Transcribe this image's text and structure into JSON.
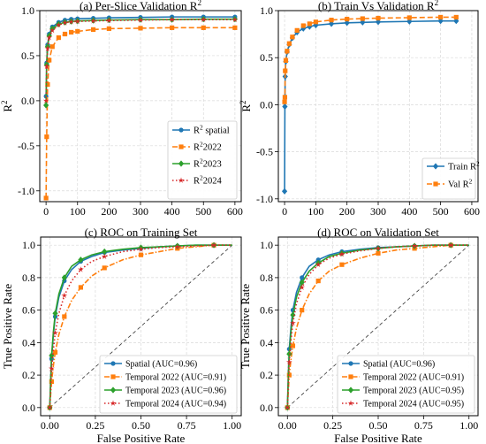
{
  "chart_data": [
    {
      "type": "line",
      "title": "(a) Per-Slice Validation R",
      "title_sup": "2",
      "xlabel": "",
      "ylabel": "R",
      "ylabel_sup": "2",
      "xlim": [
        -20,
        620
      ],
      "ylim": [
        -1.12,
        1.0
      ],
      "xticks": [
        "0",
        "100",
        "200",
        "300",
        "400",
        "500",
        "600"
      ],
      "yticks": [
        "-1.0",
        "-0.5",
        "0.0",
        "0.5",
        "1.0"
      ],
      "grid": true,
      "legend_position": "lower-right",
      "series": [
        {
          "name": "R",
          "name_sup": "2",
          "name_suffix": " spatial",
          "color": "#1f77b4",
          "style": "solid",
          "marker": "circle",
          "x": [
            0,
            2,
            5,
            10,
            20,
            40,
            60,
            80,
            100,
            150,
            200,
            300,
            400,
            500,
            600
          ],
          "y": [
            0.05,
            0.42,
            0.62,
            0.74,
            0.82,
            0.87,
            0.895,
            0.905,
            0.91,
            0.915,
            0.92,
            0.925,
            0.93,
            0.93,
            0.93
          ]
        },
        {
          "name": "R",
          "name_sup": "2",
          "name_suffix": "2022",
          "color": "#ff7f0e",
          "style": "dashed",
          "marker": "square",
          "x": [
            0,
            2,
            5,
            10,
            20,
            40,
            60,
            80,
            100,
            150,
            200,
            300,
            400,
            500,
            600
          ],
          "y": [
            -1.08,
            -0.4,
            0.18,
            0.45,
            0.6,
            0.7,
            0.74,
            0.76,
            0.77,
            0.79,
            0.8,
            0.805,
            0.81,
            0.81,
            0.81
          ]
        },
        {
          "name": "R",
          "name_sup": "2",
          "name_suffix": "2023",
          "color": "#2ca02c",
          "style": "solid",
          "marker": "diamond",
          "x": [
            0,
            2,
            5,
            10,
            20,
            40,
            60,
            80,
            100,
            150,
            200,
            300,
            400,
            500,
            600
          ],
          "y": [
            -0.05,
            0.4,
            0.6,
            0.72,
            0.8,
            0.85,
            0.87,
            0.88,
            0.885,
            0.89,
            0.895,
            0.9,
            0.9,
            0.905,
            0.905
          ]
        },
        {
          "name": "R",
          "name_sup": "2",
          "name_suffix": "2024",
          "color": "#d62728",
          "style": "dotted",
          "marker": "star",
          "x": [
            0,
            2,
            5,
            10,
            20,
            40,
            60,
            80,
            100,
            150,
            200,
            300,
            400,
            500,
            600
          ],
          "y": [
            0.0,
            0.38,
            0.58,
            0.7,
            0.78,
            0.84,
            0.865,
            0.875,
            0.88,
            0.885,
            0.89,
            0.895,
            0.9,
            0.9,
            0.9
          ]
        }
      ]
    },
    {
      "type": "line",
      "title": "(b) Train Vs Validation R",
      "title_sup": "2",
      "xlabel": "",
      "ylabel": "R",
      "ylabel_sup": "2",
      "xlim": [
        -20,
        620
      ],
      "ylim": [
        -1.03,
        1.0
      ],
      "xticks": [
        "0",
        "100",
        "200",
        "300",
        "400",
        "500",
        "600"
      ],
      "yticks": [
        "-1.0",
        "-0.5",
        "0.0",
        "0.5",
        "1.0"
      ],
      "grid": true,
      "legend_position": "lower-right",
      "series": [
        {
          "name": "Train R",
          "name_sup": "2",
          "name_suffix": "",
          "color": "#1f77b4",
          "style": "solid",
          "marker": "diamond",
          "x": [
            0,
            1,
            2,
            4,
            8,
            15,
            25,
            40,
            60,
            80,
            100,
            150,
            200,
            250,
            300,
            400,
            500,
            550
          ],
          "y": [
            -0.92,
            -0.02,
            0.3,
            0.46,
            0.56,
            0.64,
            0.71,
            0.77,
            0.81,
            0.83,
            0.845,
            0.86,
            0.87,
            0.875,
            0.88,
            0.885,
            0.89,
            0.89
          ]
        },
        {
          "name": "Val R",
          "name_sup": "2",
          "name_suffix": "",
          "color": "#ff7f0e",
          "style": "dashed",
          "marker": "square",
          "x": [
            0,
            1,
            2,
            4,
            8,
            15,
            25,
            40,
            60,
            80,
            100,
            150,
            200,
            250,
            300,
            400,
            500,
            550
          ],
          "y": [
            0.03,
            0.08,
            0.36,
            0.47,
            0.57,
            0.65,
            0.72,
            0.79,
            0.84,
            0.86,
            0.88,
            0.9,
            0.91,
            0.915,
            0.92,
            0.925,
            0.93,
            0.93
          ]
        }
      ]
    },
    {
      "type": "line",
      "title": "(c) ROC on Training Set",
      "xlabel": "False Positive Rate",
      "ylabel": "True Positive Rate",
      "xlim": [
        -0.05,
        1.05
      ],
      "ylim": [
        -0.05,
        1.05
      ],
      "xticks": [
        "0.00",
        "0.25",
        "0.50",
        "0.75",
        "1.00"
      ],
      "yticks": [
        "0.0",
        "0.2",
        "0.4",
        "0.6",
        "0.8",
        "1.0"
      ],
      "grid": true,
      "legend_position": "lower-right",
      "diagonal": true,
      "series": [
        {
          "name": "Spatial (AUC=0.96)",
          "color": "#1f77b4",
          "style": "solid",
          "marker": "circle",
          "x": [
            0,
            0.005,
            0.01,
            0.02,
            0.03,
            0.05,
            0.08,
            0.12,
            0.17,
            0.23,
            0.3,
            0.4,
            0.5,
            0.6,
            0.7,
            0.8,
            0.9,
            1.0
          ],
          "y": [
            0,
            0.16,
            0.3,
            0.45,
            0.56,
            0.68,
            0.78,
            0.85,
            0.9,
            0.93,
            0.955,
            0.97,
            0.98,
            0.99,
            0.995,
            1.0,
            1.0,
            1.0
          ]
        },
        {
          "name": "Temporal 2022 (AUC=0.91)",
          "color": "#ff7f0e",
          "style": "dashdot",
          "marker": "square",
          "x": [
            0,
            0.005,
            0.01,
            0.02,
            0.03,
            0.05,
            0.08,
            0.12,
            0.17,
            0.23,
            0.3,
            0.4,
            0.5,
            0.6,
            0.7,
            0.8,
            0.9,
            1.0
          ],
          "y": [
            0,
            0.08,
            0.16,
            0.26,
            0.34,
            0.45,
            0.56,
            0.66,
            0.74,
            0.81,
            0.86,
            0.91,
            0.94,
            0.96,
            0.98,
            0.99,
            1.0,
            1.0
          ]
        },
        {
          "name": "Temporal 2023 (AUC=0.96)",
          "color": "#2ca02c",
          "style": "solid",
          "marker": "diamond",
          "x": [
            0,
            0.005,
            0.01,
            0.02,
            0.03,
            0.05,
            0.08,
            0.12,
            0.17,
            0.23,
            0.3,
            0.4,
            0.5,
            0.6,
            0.7,
            0.8,
            0.9,
            1.0
          ],
          "y": [
            0,
            0.17,
            0.32,
            0.47,
            0.58,
            0.7,
            0.8,
            0.87,
            0.91,
            0.94,
            0.96,
            0.975,
            0.985,
            0.99,
            0.995,
            1.0,
            1.0,
            1.0
          ]
        },
        {
          "name": "Temporal 2024 (AUC=0.94)",
          "color": "#d62728",
          "style": "dotted",
          "marker": "star",
          "x": [
            0,
            0.005,
            0.01,
            0.02,
            0.03,
            0.05,
            0.08,
            0.12,
            0.17,
            0.23,
            0.3,
            0.4,
            0.5,
            0.6,
            0.7,
            0.8,
            0.9,
            1.0
          ],
          "y": [
            0,
            0.12,
            0.24,
            0.36,
            0.46,
            0.58,
            0.69,
            0.78,
            0.85,
            0.9,
            0.93,
            0.96,
            0.975,
            0.985,
            0.99,
            0.995,
            1.0,
            1.0
          ]
        }
      ]
    },
    {
      "type": "line",
      "title": "(d) ROC on Validation Set",
      "xlabel": "False Positive Rate",
      "ylabel": "True Positive Rate",
      "xlim": [
        -0.05,
        1.05
      ],
      "ylim": [
        -0.05,
        1.05
      ],
      "xticks": [
        "0.00",
        "0.25",
        "0.50",
        "0.75",
        "1.00"
      ],
      "yticks": [
        "0.0",
        "0.2",
        "0.4",
        "0.6",
        "0.8",
        "1.0"
      ],
      "grid": true,
      "legend_position": "lower-right",
      "diagonal": true,
      "series": [
        {
          "name": "Spatial (AUC=0.96)",
          "color": "#1f77b4",
          "style": "solid",
          "marker": "circle",
          "x": [
            0,
            0.005,
            0.01,
            0.02,
            0.03,
            0.05,
            0.08,
            0.12,
            0.17,
            0.23,
            0.3,
            0.4,
            0.5,
            0.6,
            0.7,
            0.8,
            0.9,
            1.0
          ],
          "y": [
            0,
            0.2,
            0.36,
            0.5,
            0.6,
            0.71,
            0.8,
            0.87,
            0.91,
            0.94,
            0.96,
            0.975,
            0.985,
            0.99,
            0.995,
            1.0,
            1.0,
            1.0
          ]
        },
        {
          "name": "Temporal 2022 (AUC=0.91)",
          "color": "#ff7f0e",
          "style": "dashdot",
          "marker": "square",
          "x": [
            0,
            0.005,
            0.01,
            0.02,
            0.03,
            0.05,
            0.08,
            0.12,
            0.17,
            0.23,
            0.3,
            0.4,
            0.5,
            0.6,
            0.7,
            0.8,
            0.9,
            1.0
          ],
          "y": [
            0,
            0.1,
            0.2,
            0.3,
            0.38,
            0.49,
            0.6,
            0.7,
            0.78,
            0.84,
            0.88,
            0.92,
            0.95,
            0.97,
            0.98,
            0.99,
            1.0,
            1.0
          ]
        },
        {
          "name": "Temporal 2023 (AUC=0.95)",
          "color": "#2ca02c",
          "style": "solid",
          "marker": "diamond",
          "x": [
            0,
            0.005,
            0.01,
            0.02,
            0.03,
            0.05,
            0.08,
            0.12,
            0.17,
            0.23,
            0.3,
            0.4,
            0.5,
            0.6,
            0.7,
            0.8,
            0.9,
            1.0
          ],
          "y": [
            0,
            0.18,
            0.33,
            0.47,
            0.57,
            0.68,
            0.77,
            0.84,
            0.89,
            0.93,
            0.95,
            0.97,
            0.98,
            0.99,
            0.995,
            1.0,
            1.0,
            1.0
          ]
        },
        {
          "name": "Temporal 2024 (AUC=0.95)",
          "color": "#d62728",
          "style": "dotted",
          "marker": "star",
          "x": [
            0,
            0.005,
            0.01,
            0.02,
            0.03,
            0.05,
            0.08,
            0.12,
            0.17,
            0.23,
            0.3,
            0.4,
            0.5,
            0.6,
            0.7,
            0.8,
            0.9,
            1.0
          ],
          "y": [
            0,
            0.15,
            0.28,
            0.42,
            0.52,
            0.64,
            0.74,
            0.82,
            0.88,
            0.92,
            0.945,
            0.965,
            0.98,
            0.99,
            0.995,
            1.0,
            1.0,
            1.0
          ]
        }
      ]
    }
  ]
}
